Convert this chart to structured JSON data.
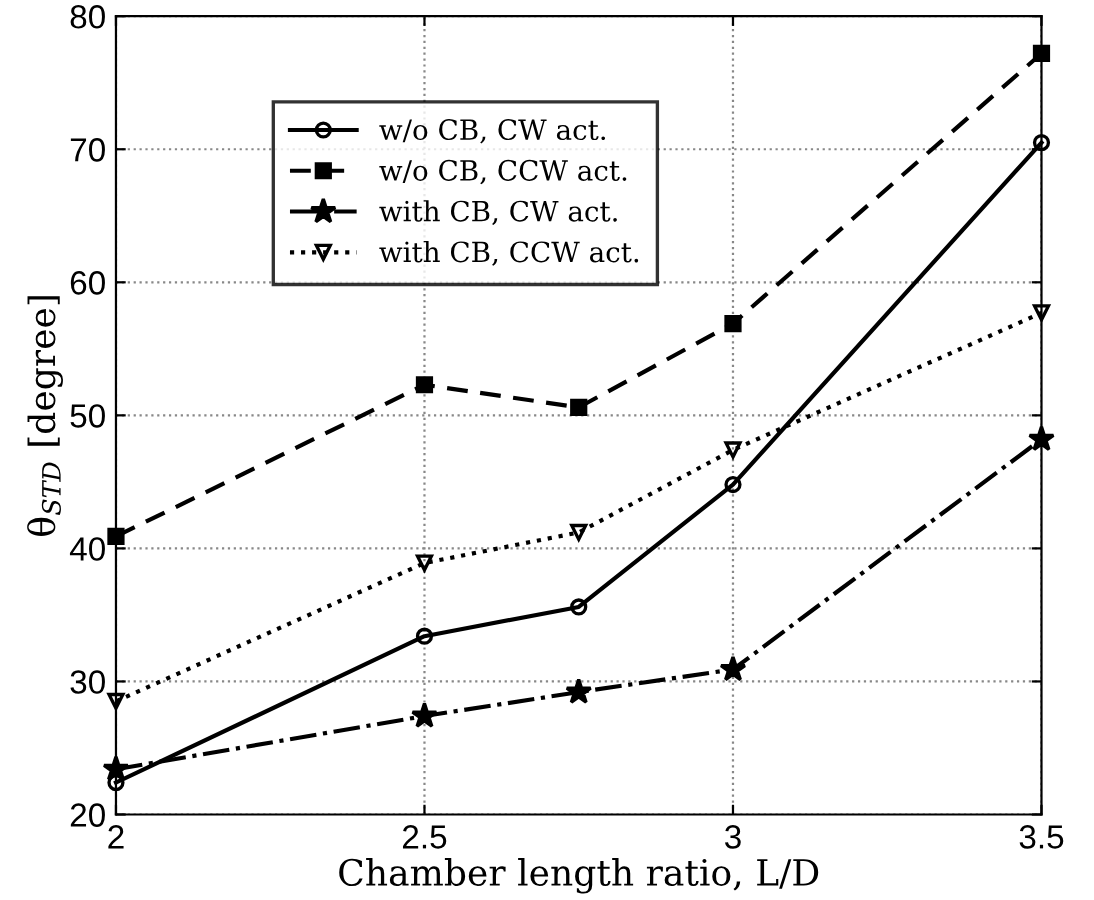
{
  "chart_data": {
    "type": "line",
    "xlabel": "Chamber length ratio, L/D",
    "ylabel": "θ$_{STD}$ [degree]",
    "x": [
      2,
      2.5,
      2.75,
      3,
      3.5
    ],
    "series": [
      {
        "name": "w/o CB, CW act.",
        "color": "#000000",
        "values": [
          22.4,
          33.4,
          35.6,
          44.8,
          70.5
        ],
        "marker": "circle",
        "line_style": "solid"
      },
      {
        "name": "w/o CB, CCW act.",
        "color": "#000000",
        "values": [
          40.9,
          52.3,
          50.6,
          56.9,
          77.2
        ],
        "marker": "square",
        "line_style": "dashed"
      },
      {
        "name": "with CB, CW act.",
        "color": "#000000",
        "values": [
          23.4,
          27.4,
          29.2,
          30.9,
          48.2
        ],
        "marker": "star",
        "line_style": "dashdot"
      },
      {
        "name": "with CB, CCW act.",
        "color": "#000000",
        "values": [
          28.5,
          38.9,
          41.2,
          47.4,
          57.7
        ],
        "marker": "triangle",
        "line_style": "dotted"
      }
    ],
    "xlim": [
      2,
      3.5
    ],
    "xticks": [
      2,
      2.5,
      3,
      3.5
    ],
    "ylim": [
      20,
      80
    ],
    "yticks": [
      20,
      30,
      40,
      50,
      60,
      70,
      80
    ],
    "grid": true,
    "legend": "top left"
  }
}
